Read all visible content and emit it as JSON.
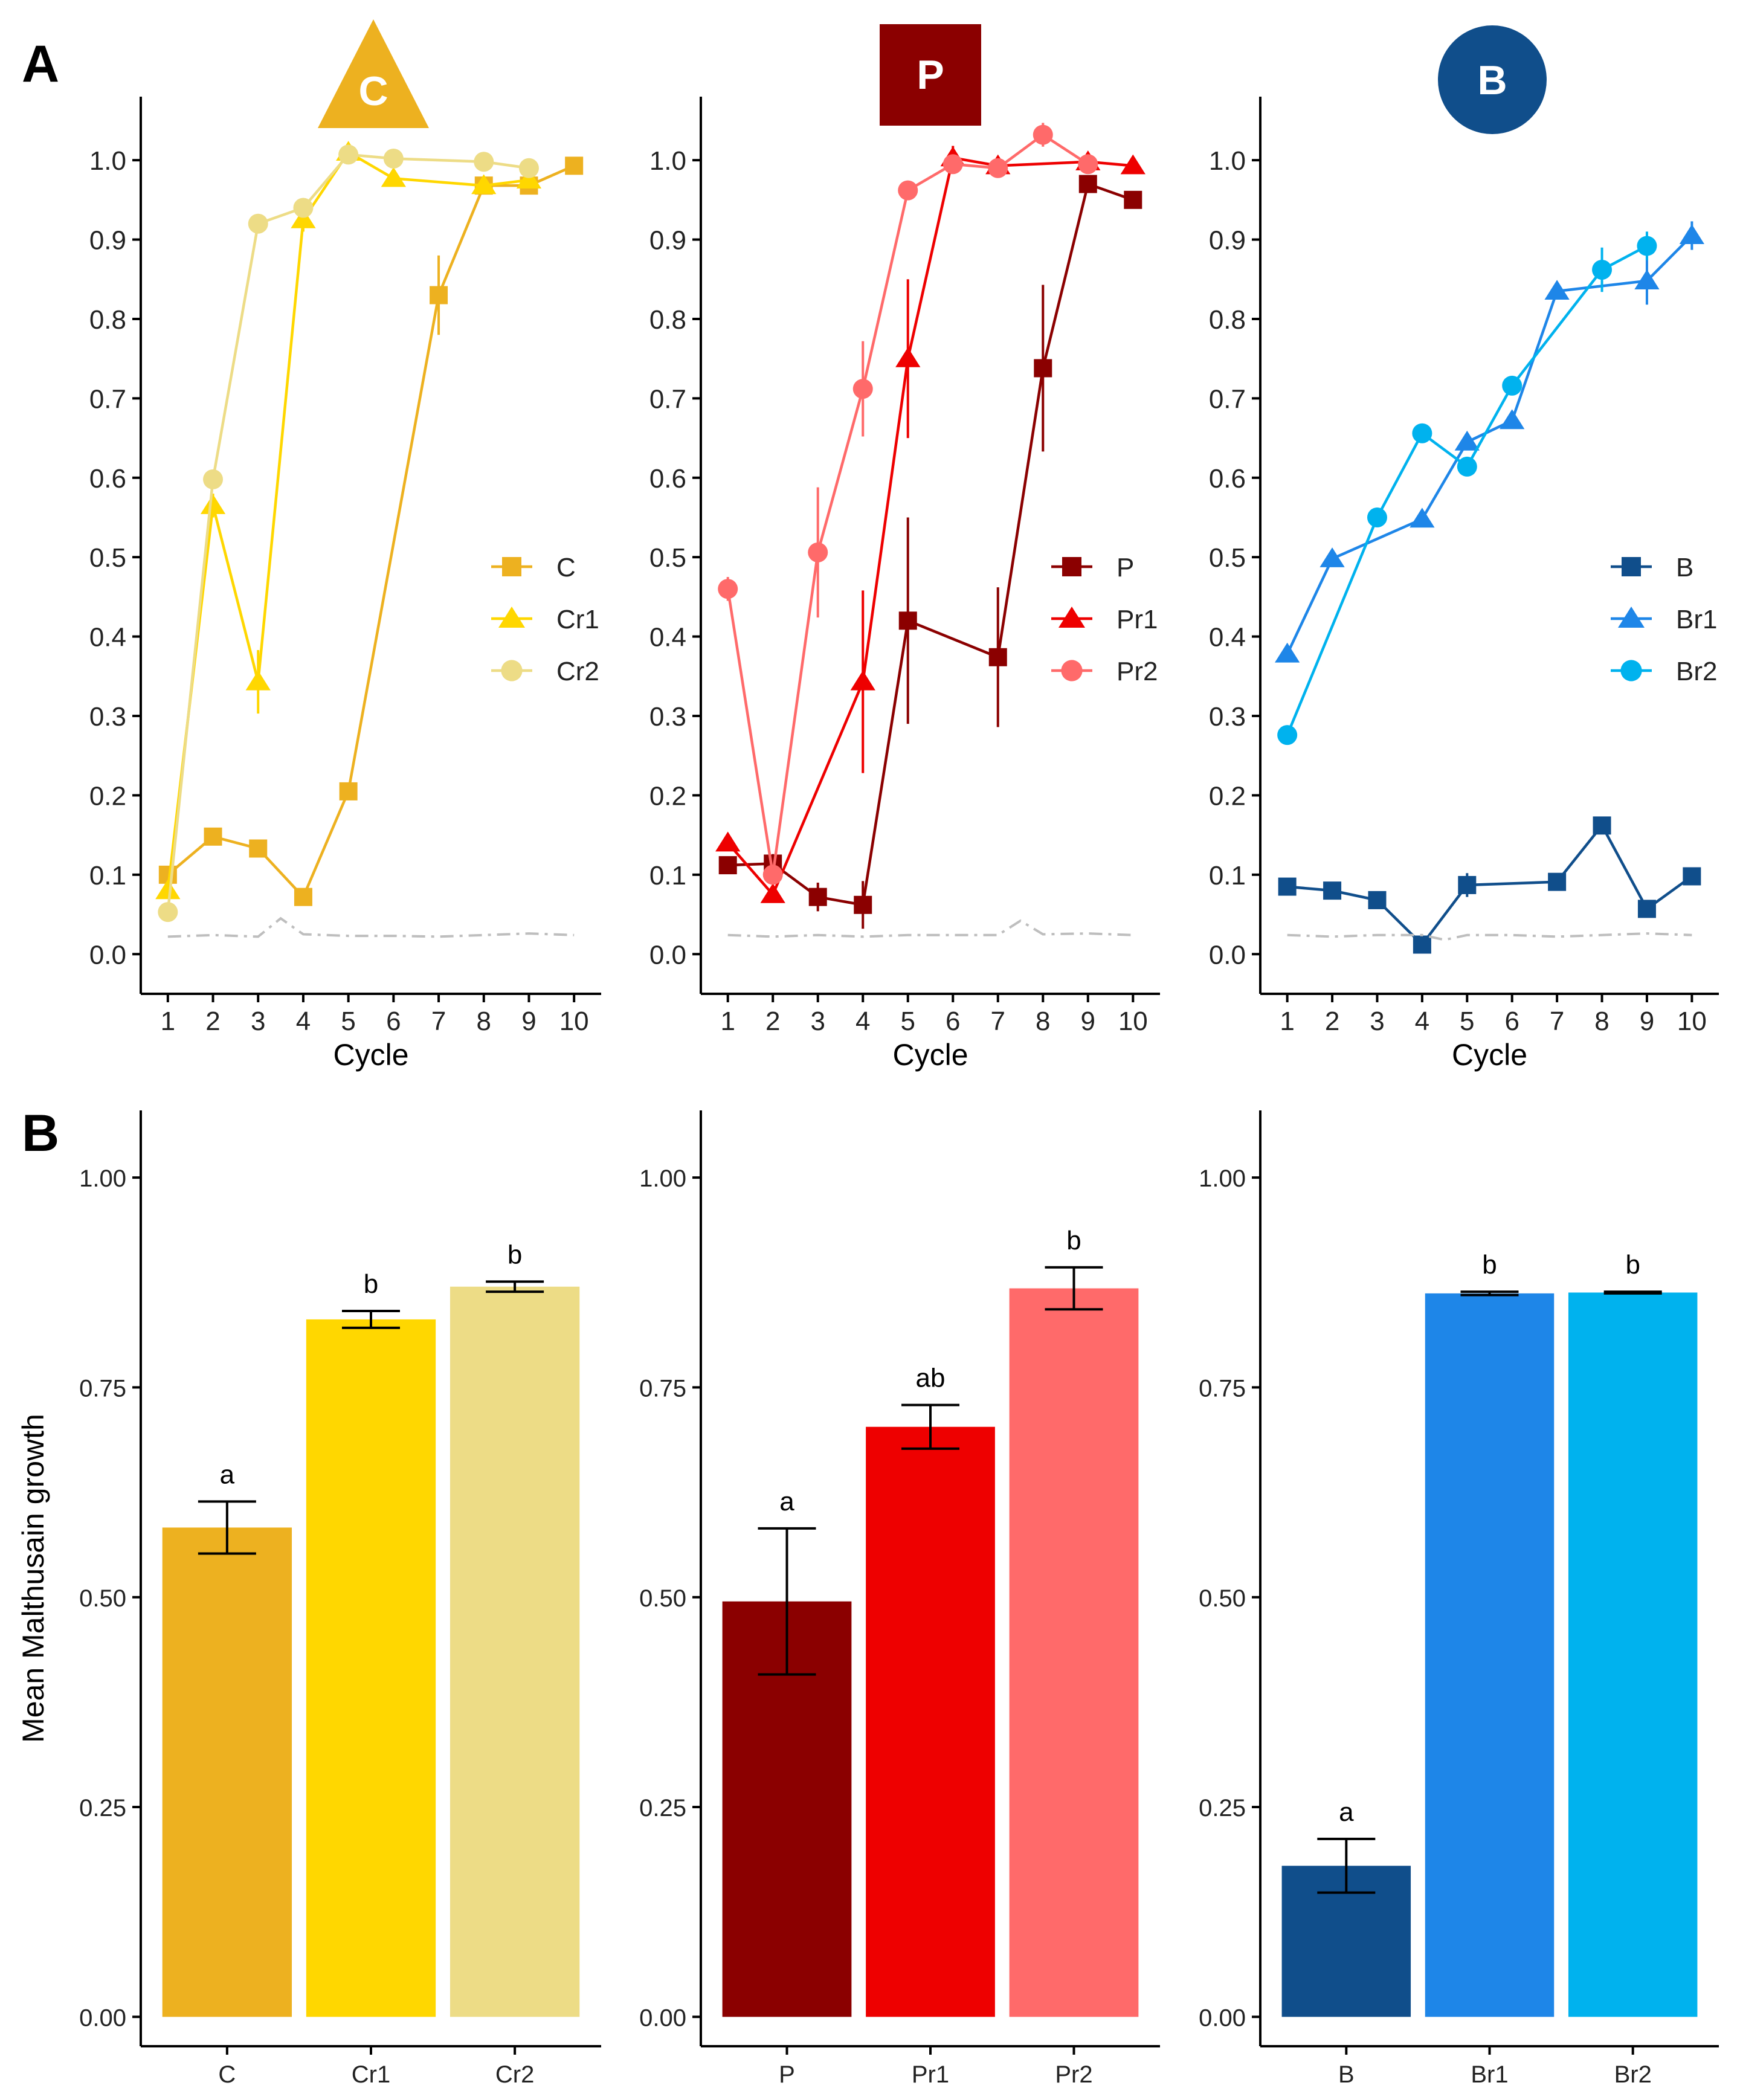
{
  "figure": {
    "panel_labels": [
      "A",
      "B"
    ],
    "series_colors": {
      "C": "#EDB120",
      "Cr1": "#FFD700",
      "Cr2": "#EDDC86",
      "P": "#8B0000",
      "Pr1": "#EE0000",
      "Pr2": "#FF6A6A",
      "B": "#104E8B",
      "Br1": "#1E86E8",
      "Br2": "#00B2EE"
    },
    "control_line_color": "#BEBEBE"
  },
  "chart_data": [
    {
      "id": "A-C",
      "type": "line",
      "badge": {
        "label": "C",
        "shape": "triangle",
        "color": "#EDB120"
      },
      "xlabel": "Cycle",
      "ylabel": "",
      "x": [
        1,
        2,
        3,
        4,
        5,
        6,
        7,
        8,
        9,
        10
      ],
      "xlim": [
        0.4,
        10.6
      ],
      "ylim": [
        -0.05,
        1.08
      ],
      "yticks": [
        0.0,
        0.1,
        0.2,
        0.3,
        0.4,
        0.5,
        0.6,
        0.7,
        0.8,
        0.9,
        1.0
      ],
      "ytick_labels": [
        "0.0",
        "0.1",
        "0.2",
        "0.3",
        "0.4",
        "0.5",
        "0.6",
        "0.7",
        "0.8",
        "0.9",
        "1.0"
      ],
      "legend": {
        "position": "right-middle",
        "entries": [
          "C",
          "Cr1",
          "Cr2"
        ]
      },
      "series": [
        {
          "name": "C",
          "marker": "square",
          "x": [
            1,
            2,
            3,
            4,
            5,
            7,
            8,
            9,
            10
          ],
          "values": [
            0.1,
            0.148,
            0.133,
            0.072,
            0.205,
            0.83,
            0.968,
            0.968,
            0.993
          ],
          "err": [
            0.01,
            0.006,
            0.006,
            0.006,
            0.008,
            0.05,
            0.01,
            0.01,
            0.006
          ]
        },
        {
          "name": "Cr1",
          "marker": "triangle",
          "x": [
            1,
            2,
            3,
            4,
            5,
            6,
            8,
            9
          ],
          "values": [
            0.08,
            0.565,
            0.343,
            0.925,
            1.01,
            0.977,
            0.968,
            0.975
          ],
          "err": [
            0.01,
            0.015,
            0.04,
            0.015,
            0.01,
            0.008,
            0.008,
            0.008
          ]
        },
        {
          "name": "Cr2",
          "marker": "circle",
          "x": [
            1,
            2,
            3,
            4,
            5,
            6,
            8,
            9
          ],
          "values": [
            0.053,
            0.598,
            0.92,
            0.94,
            1.007,
            1.002,
            0.998,
            0.99
          ],
          "err": [
            0.006,
            0.01,
            0.008,
            0.008,
            0.01,
            0.006,
            0.006,
            0.006
          ]
        },
        {
          "name": "control",
          "marker": "none",
          "style": "dashdot",
          "x": [
            1,
            2,
            3,
            3.5,
            4,
            5,
            6,
            7,
            8,
            9,
            10
          ],
          "values": [
            0.022,
            0.024,
            0.022,
            0.045,
            0.025,
            0.023,
            0.023,
            0.022,
            0.024,
            0.026,
            0.024
          ],
          "err": []
        }
      ]
    },
    {
      "id": "A-P",
      "type": "line",
      "badge": {
        "label": "P",
        "shape": "square",
        "color": "#8B0000"
      },
      "xlabel": "Cycle",
      "ylabel": "",
      "x": [
        1,
        2,
        3,
        4,
        5,
        6,
        7,
        8,
        9,
        10
      ],
      "xlim": [
        0.4,
        10.6
      ],
      "ylim": [
        -0.05,
        1.08
      ],
      "yticks": [
        0.0,
        0.1,
        0.2,
        0.3,
        0.4,
        0.5,
        0.6,
        0.7,
        0.8,
        0.9,
        1.0
      ],
      "ytick_labels": [
        "0.0",
        "0.1",
        "0.2",
        "0.3",
        "0.4",
        "0.5",
        "0.6",
        "0.7",
        "0.8",
        "0.9",
        "1.0"
      ],
      "legend": {
        "position": "right-middle",
        "entries": [
          "P",
          "Pr1",
          "Pr2"
        ]
      },
      "series": [
        {
          "name": "P",
          "marker": "square",
          "x": [
            1,
            2,
            3,
            4,
            5,
            7,
            8,
            9,
            10
          ],
          "values": [
            0.112,
            0.114,
            0.072,
            0.062,
            0.42,
            0.374,
            0.738,
            0.97,
            0.95
          ],
          "err": [
            0.01,
            0.012,
            0.018,
            0.03,
            0.13,
            0.088,
            0.105,
            0.008,
            0.008
          ]
        },
        {
          "name": "Pr1",
          "marker": "triangle",
          "x": [
            1,
            2,
            4,
            5,
            6,
            7,
            9,
            10
          ],
          "values": [
            0.14,
            0.075,
            0.343,
            0.75,
            1.003,
            0.993,
            0.998,
            0.993
          ],
          "err": [
            0.008,
            0.01,
            0.115,
            0.1,
            0.015,
            0.008,
            0.008,
            0.008
          ]
        },
        {
          "name": "Pr2",
          "marker": "circle",
          "x": [
            1,
            2,
            3,
            4,
            5,
            6,
            7,
            8,
            9
          ],
          "values": [
            0.46,
            0.1,
            0.506,
            0.712,
            0.962,
            0.995,
            0.99,
            1.032,
            0.995
          ],
          "err": [
            0.015,
            0.008,
            0.082,
            0.06,
            0.008,
            0.01,
            0.008,
            0.015,
            0.01
          ]
        },
        {
          "name": "control",
          "marker": "none",
          "style": "dashdot",
          "x": [
            1,
            2,
            3,
            4,
            5,
            6,
            7,
            7.5,
            8,
            9,
            10
          ],
          "values": [
            0.024,
            0.022,
            0.024,
            0.022,
            0.024,
            0.024,
            0.024,
            0.042,
            0.025,
            0.026,
            0.024
          ],
          "err": []
        }
      ]
    },
    {
      "id": "A-B",
      "type": "line",
      "badge": {
        "label": "B",
        "shape": "circle",
        "color": "#104E8B"
      },
      "xlabel": "Cycle",
      "ylabel": "",
      "x": [
        1,
        2,
        3,
        4,
        5,
        6,
        7,
        8,
        9,
        10
      ],
      "xlim": [
        0.4,
        10.6
      ],
      "ylim": [
        -0.05,
        1.08
      ],
      "yticks": [
        0.0,
        0.1,
        0.2,
        0.3,
        0.4,
        0.5,
        0.6,
        0.7,
        0.8,
        0.9,
        1.0
      ],
      "ytick_labels": [
        "0.0",
        "0.1",
        "0.2",
        "0.3",
        "0.4",
        "0.5",
        "0.6",
        "0.7",
        "0.8",
        "0.9",
        "1.0"
      ],
      "legend": {
        "position": "right-middle",
        "entries": [
          "B",
          "Br1",
          "Br2"
        ]
      },
      "series": [
        {
          "name": "B",
          "marker": "square",
          "x": [
            1,
            2,
            3,
            4,
            5,
            7,
            8,
            9,
            10
          ],
          "values": [
            0.085,
            0.08,
            0.068,
            0.012,
            0.087,
            0.091,
            0.162,
            0.057,
            0.098
          ],
          "err": [
            0.006,
            0.006,
            0.006,
            0.01,
            0.015,
            0.006,
            0.008,
            0.008,
            0.006
          ]
        },
        {
          "name": "Br1",
          "marker": "triangle",
          "x": [
            1,
            2,
            4,
            5,
            6,
            7,
            9,
            10
          ],
          "values": [
            0.378,
            0.498,
            0.548,
            0.645,
            0.672,
            0.835,
            0.848,
            0.905
          ],
          "err": [
            0.006,
            0.008,
            0.008,
            0.01,
            0.008,
            0.006,
            0.03,
            0.018
          ]
        },
        {
          "name": "Br2",
          "marker": "circle",
          "x": [
            1,
            3,
            4,
            5,
            6,
            8,
            9
          ],
          "values": [
            0.276,
            0.55,
            0.656,
            0.614,
            0.716,
            0.862,
            0.892
          ],
          "err": [
            0.006,
            0.008,
            0.008,
            0.008,
            0.008,
            0.028,
            0.018
          ]
        },
        {
          "name": "control",
          "marker": "none",
          "style": "dashdot",
          "x": [
            1,
            2,
            3,
            4,
            4.5,
            5,
            6,
            7,
            8,
            9,
            10
          ],
          "values": [
            0.024,
            0.022,
            0.024,
            0.024,
            0.018,
            0.024,
            0.024,
            0.022,
            0.024,
            0.026,
            0.024
          ],
          "err": []
        }
      ]
    },
    {
      "id": "B-C",
      "type": "bar",
      "xlabel": "",
      "ylabel": "Mean Malthusain growth",
      "categories": [
        "C",
        "Cr1",
        "Cr2"
      ],
      "values": [
        0.583,
        0.831,
        0.87
      ],
      "err": [
        0.031,
        0.01,
        0.006
      ],
      "sig_letters": [
        "a",
        "b",
        "b"
      ],
      "ylim": [
        -0.035,
        1.08
      ],
      "yticks": [
        0.0,
        0.25,
        0.5,
        0.75,
        1.0
      ],
      "ytick_labels": [
        "0.00",
        "0.25",
        "0.50",
        "0.75",
        "1.00"
      ]
    },
    {
      "id": "B-P",
      "type": "bar",
      "xlabel": "",
      "ylabel": "",
      "categories": [
        "P",
        "Pr1",
        "Pr2"
      ],
      "values": [
        0.495,
        0.703,
        0.868
      ],
      "err": [
        0.087,
        0.026,
        0.025
      ],
      "sig_letters": [
        "a",
        "ab",
        "b"
      ],
      "ylim": [
        -0.035,
        1.08
      ],
      "yticks": [
        0.0,
        0.25,
        0.5,
        0.75,
        1.0
      ],
      "ytick_labels": [
        "0.00",
        "0.25",
        "0.50",
        "0.75",
        "1.00"
      ]
    },
    {
      "id": "B-B",
      "type": "bar",
      "xlabel": "",
      "ylabel": "",
      "categories": [
        "B",
        "Br1",
        "Br2"
      ],
      "values": [
        0.18,
        0.862,
        0.863
      ],
      "err": [
        0.032,
        0.002,
        0.001
      ],
      "sig_letters": [
        "a",
        "b",
        "b"
      ],
      "ylim": [
        -0.035,
        1.08
      ],
      "yticks": [
        0.0,
        0.25,
        0.5,
        0.75,
        1.0
      ],
      "ytick_labels": [
        "0.00",
        "0.25",
        "0.50",
        "0.75",
        "1.00"
      ]
    }
  ]
}
